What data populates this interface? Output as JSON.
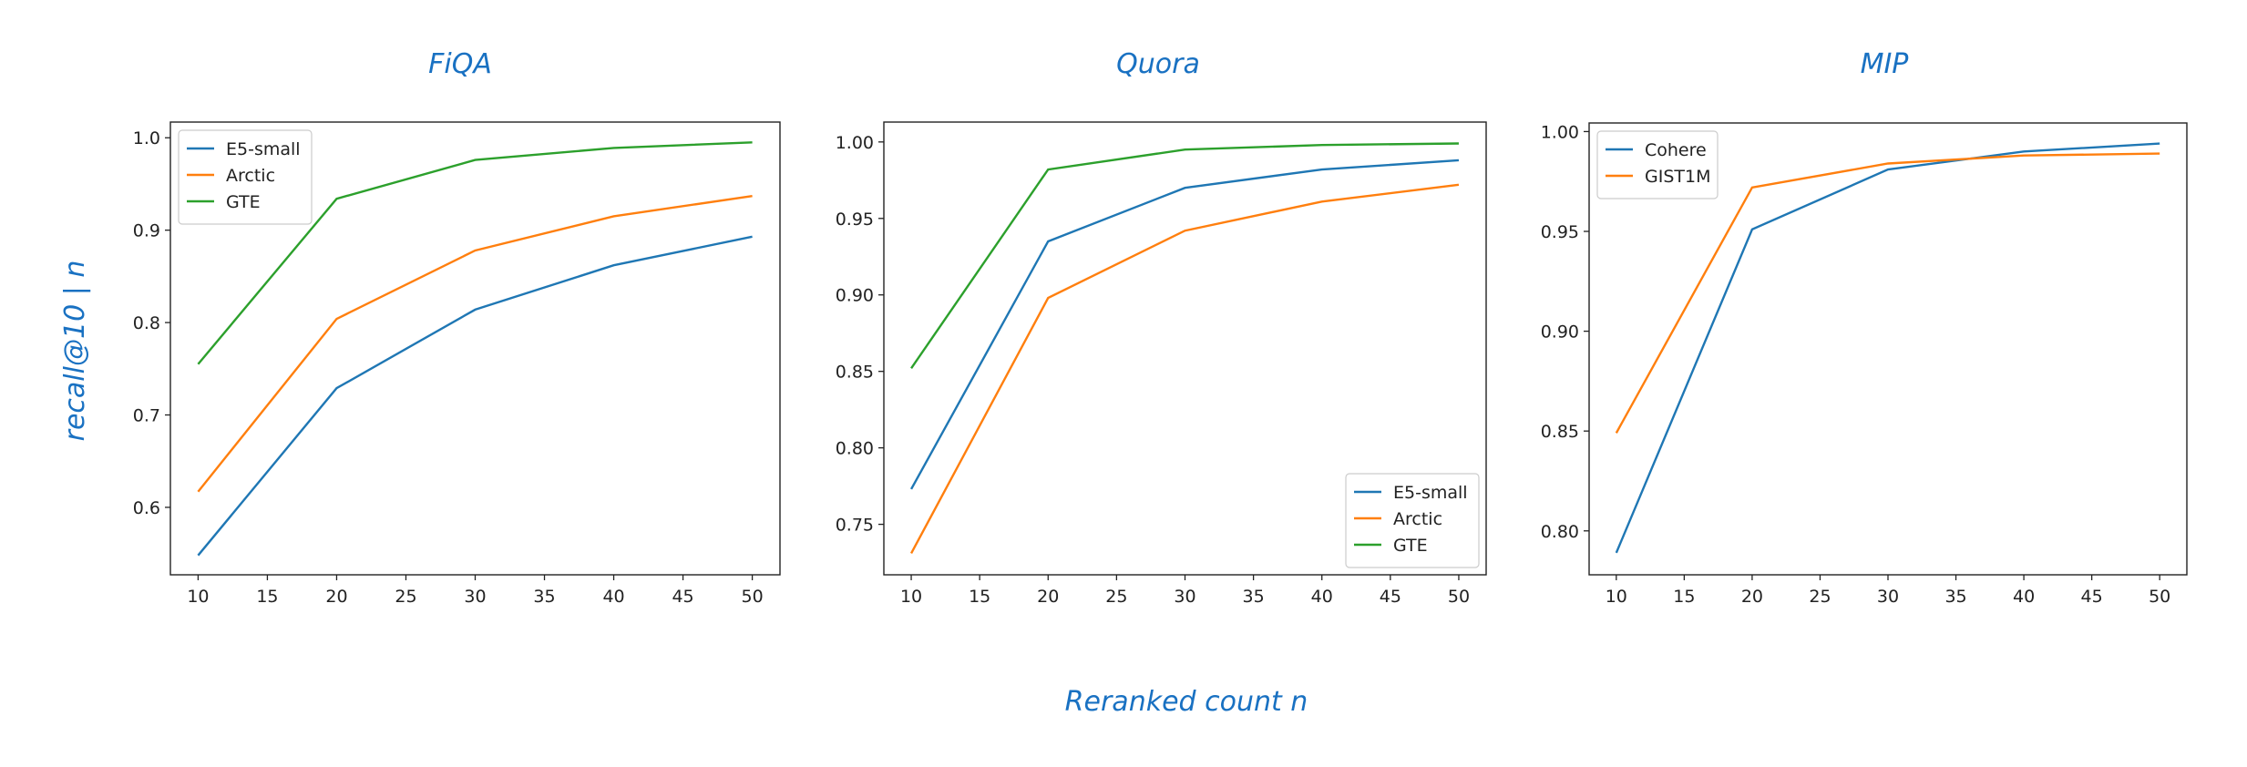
{
  "figure": {
    "xlabel": "Reranked count n",
    "ylabel": "recall@10 | n"
  },
  "colors": {
    "blue": "#1f77b4",
    "orange": "#ff7f0e",
    "green": "#2ca02c",
    "annotation": "#1971c2"
  },
  "chart_data": [
    {
      "type": "line",
      "title": "FiQA",
      "x": [
        10,
        20,
        30,
        40,
        50
      ],
      "xticks": [
        10,
        15,
        20,
        25,
        30,
        35,
        40,
        45,
        50
      ],
      "yticks": [
        0.6,
        0.7,
        0.8,
        0.9,
        1.0
      ],
      "ytick_labels": [
        "0.6",
        "0.7",
        "0.8",
        "0.9",
        "1.0"
      ],
      "xlim": [
        8,
        52
      ],
      "ylim": [
        0.527,
        1.017
      ],
      "legend": "upper-left",
      "grid": false,
      "series": [
        {
          "name": "E5-small",
          "color": "#1f77b4",
          "values": [
            0.548,
            0.729,
            0.814,
            0.862,
            0.893
          ]
        },
        {
          "name": "Arctic",
          "color": "#ff7f0e",
          "values": [
            0.617,
            0.804,
            0.878,
            0.915,
            0.937
          ]
        },
        {
          "name": "GTE",
          "color": "#2ca02c",
          "values": [
            0.755,
            0.934,
            0.976,
            0.989,
            0.995
          ]
        }
      ]
    },
    {
      "type": "line",
      "title": "Quora",
      "x": [
        10,
        20,
        30,
        40,
        50
      ],
      "xticks": [
        10,
        15,
        20,
        25,
        30,
        35,
        40,
        45,
        50
      ],
      "yticks": [
        0.75,
        0.8,
        0.85,
        0.9,
        0.95,
        1.0
      ],
      "ytick_labels": [
        "0.75",
        "0.80",
        "0.85",
        "0.90",
        "0.95",
        "1.00"
      ],
      "xlim": [
        8,
        52
      ],
      "ylim": [
        0.717,
        1.013
      ],
      "legend": "lower-right",
      "grid": false,
      "series": [
        {
          "name": "E5-small",
          "color": "#1f77b4",
          "values": [
            0.773,
            0.935,
            0.97,
            0.982,
            0.988
          ]
        },
        {
          "name": "Arctic",
          "color": "#ff7f0e",
          "values": [
            0.731,
            0.898,
            0.942,
            0.961,
            0.972
          ]
        },
        {
          "name": "GTE",
          "color": "#2ca02c",
          "values": [
            0.852,
            0.982,
            0.995,
            0.998,
            0.999
          ]
        }
      ]
    },
    {
      "type": "line",
      "title": "MIP",
      "x": [
        10,
        20,
        30,
        40,
        50
      ],
      "xticks": [
        10,
        15,
        20,
        25,
        30,
        35,
        40,
        45,
        50
      ],
      "yticks": [
        0.8,
        0.85,
        0.9,
        0.95,
        1.0
      ],
      "ytick_labels": [
        "0.80",
        "0.85",
        "0.90",
        "0.95",
        "1.00"
      ],
      "xlim": [
        8,
        52
      ],
      "ylim": [
        0.778,
        1.0043
      ],
      "legend": "upper-left",
      "grid": false,
      "series": [
        {
          "name": "Cohere",
          "color": "#1f77b4",
          "values": [
            0.789,
            0.951,
            0.981,
            0.99,
            0.994
          ]
        },
        {
          "name": "GIST1M",
          "color": "#ff7f0e",
          "values": [
            0.849,
            0.972,
            0.984,
            0.988,
            0.989
          ]
        }
      ]
    }
  ]
}
